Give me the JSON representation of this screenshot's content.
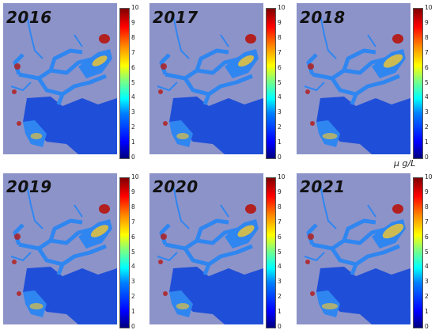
{
  "panels": [
    {
      "year": "2016",
      "bloom": 0.55
    },
    {
      "year": "2017",
      "bloom": 0.6
    },
    {
      "year": "2018",
      "bloom": 0.8
    },
    {
      "year": "2019",
      "bloom": 0.7
    },
    {
      "year": "2020",
      "bloom": 0.65
    },
    {
      "year": "2021",
      "bloom": 0.9
    }
  ],
  "colorbar": {
    "ticks": [
      "10",
      "9",
      "8",
      "7",
      "6",
      "5",
      "4",
      "3",
      "2",
      "1",
      "0"
    ],
    "min": 0,
    "max": 10,
    "colormap": "jet",
    "unit": "μ g/L"
  },
  "colors": {
    "background": "#8c93c9",
    "water_low": "#1f4fd8",
    "water_mid": "#2f86f0",
    "bloom": "#e0c040",
    "high": "#b22020"
  }
}
